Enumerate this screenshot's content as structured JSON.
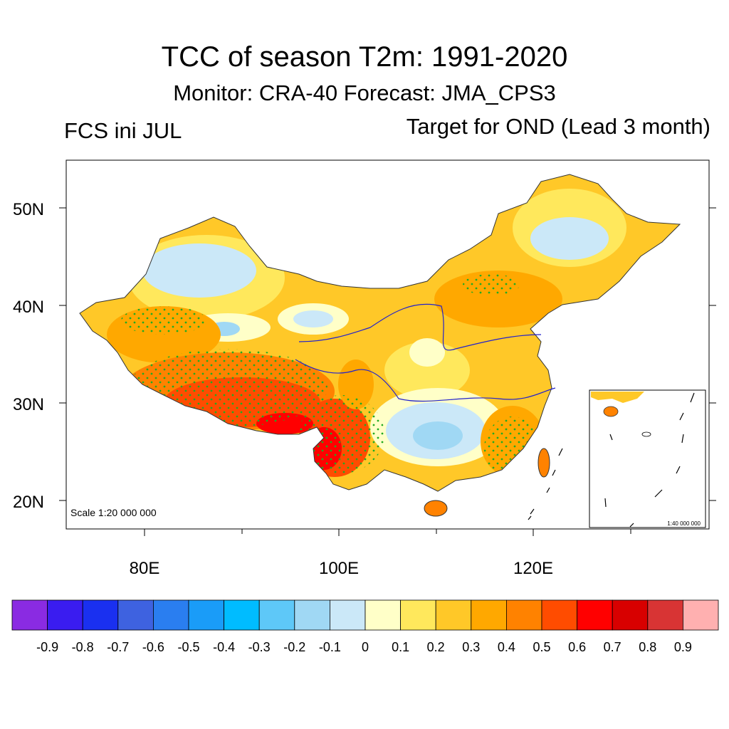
{
  "header": {
    "title": "TCC of season T2m: 1991-2020",
    "subtitle": "Monitor: CRA-40   Forecast: JMA_CPS3",
    "left_label": "FCS ini JUL",
    "right_label": "Target for OND (Lead 3 month)"
  },
  "map": {
    "lat_labels": [
      "50N",
      "40N",
      "30N",
      "20N"
    ],
    "lon_labels": [
      "80E",
      "100E",
      "120E"
    ],
    "scale_text": "Scale 1:20 000 000",
    "inset_scale_text": "1:40 000 000"
  },
  "colorbar": {
    "colors": [
      "#8a2be2",
      "#3a1cf0",
      "#1a30f0",
      "#3e62e0",
      "#2a7ef0",
      "#1a9cf8",
      "#00bcff",
      "#5ec8f8",
      "#a0d8f4",
      "#cbe8f8",
      "#ffffc8",
      "#ffe85c",
      "#ffc828",
      "#ffa800",
      "#ff8200",
      "#ff4c00",
      "#ff0000",
      "#d80000",
      "#d83434",
      "#ffb0b0"
    ],
    "labels": [
      "-0.9",
      "-0.8",
      "-0.7",
      "-0.6",
      "-0.5",
      "-0.4",
      "-0.3",
      "-0.2",
      "-0.1",
      "0",
      "0.1",
      "0.2",
      "0.3",
      "0.4",
      "0.5",
      "0.6",
      "0.7",
      "0.8",
      "0.9"
    ]
  }
}
